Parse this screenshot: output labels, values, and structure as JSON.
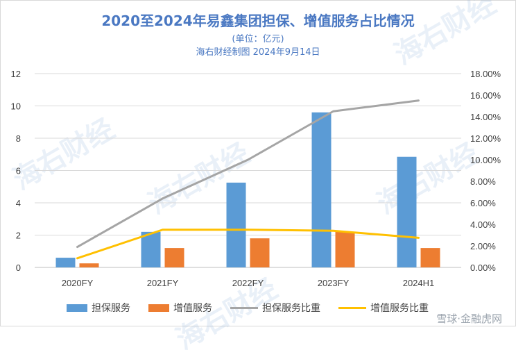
{
  "header": {
    "title": "2020至2024年易鑫集团担保、增值服务占比情况",
    "unit": "(单位：亿元)",
    "source": "海右财经制图 2024年9月14日"
  },
  "watermark": {
    "text": "海右财经",
    "corner": "雪球·金融虎网"
  },
  "colors": {
    "guarantee_bar": "#5b9bd5",
    "value_added_bar": "#ed7d31",
    "guarantee_ratio_line": "#a5a5a5",
    "value_added_ratio_line": "#ffc000"
  },
  "chart_data": {
    "type": "bar",
    "categories": [
      "2020FY",
      "2021FY",
      "2022FY",
      "2023FY",
      "2024H1"
    ],
    "series": [
      {
        "name": "担保服务",
        "type": "bar",
        "axis": "left",
        "values": [
          0.6,
          2.2,
          5.25,
          9.6,
          6.85
        ]
      },
      {
        "name": "增值服务",
        "type": "bar",
        "axis": "left",
        "values": [
          0.25,
          1.2,
          1.8,
          2.2,
          1.2
        ]
      },
      {
        "name": "担保服务比重",
        "type": "line",
        "axis": "right",
        "values": [
          0.019,
          0.064,
          0.1,
          0.145,
          0.155
        ]
      },
      {
        "name": "增值服务比重",
        "type": "line",
        "axis": "right",
        "values": [
          0.0085,
          0.035,
          0.035,
          0.034,
          0.0275
        ]
      }
    ],
    "y_left": {
      "ylim": [
        0,
        12
      ],
      "ticks": [
        "0",
        "2",
        "4",
        "6",
        "8",
        "10",
        "12"
      ]
    },
    "y_right": {
      "ylim": [
        0,
        0.18
      ],
      "ticks": [
        "0.00%",
        "2.00%",
        "4.00%",
        "6.00%",
        "8.00%",
        "10.00%",
        "12.00%",
        "14.00%",
        "16.00%",
        "18.00%"
      ]
    },
    "grid": true,
    "legend_position": "bottom"
  }
}
